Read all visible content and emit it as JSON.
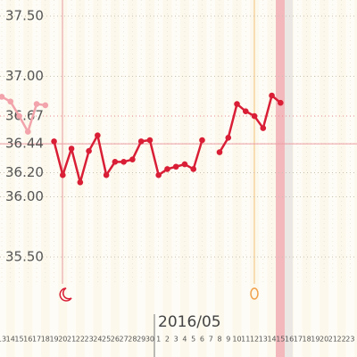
{
  "chart_data": {
    "type": "line",
    "month_label": "2016/05",
    "categories": [
      "13",
      "14",
      "15",
      "16",
      "17",
      "18",
      "19",
      "20",
      "21",
      "22",
      "23",
      "24",
      "25",
      "26",
      "27",
      "28",
      "29",
      "30",
      "1",
      "2",
      "3",
      "4",
      "5",
      "6",
      "7",
      "8",
      "9",
      "10",
      "11",
      "12",
      "13",
      "14",
      "15",
      "16",
      "17",
      "18",
      "19",
      "20",
      "21",
      "22",
      "23"
    ],
    "series": [
      {
        "color": "#f2a3ab",
        "values": [
          36.83,
          36.79,
          36.67,
          36.54,
          36.77,
          36.76,
          null,
          null,
          null,
          null,
          null,
          null,
          null,
          null,
          null,
          null,
          null,
          null,
          null,
          null,
          null,
          null,
          null,
          null,
          null,
          null,
          null,
          null,
          null,
          null,
          null,
          null,
          null,
          null,
          null,
          null,
          null,
          null,
          null,
          null,
          null
        ]
      },
      {
        "color": "#d91e36",
        "values": [
          null,
          null,
          null,
          null,
          null,
          null,
          36.46,
          36.18,
          36.4,
          36.12,
          36.38,
          36.51,
          36.18,
          36.29,
          36.29,
          36.31,
          36.46,
          36.47,
          36.18,
          36.23,
          36.25,
          36.27,
          36.23,
          36.47,
          null,
          36.37,
          36.49,
          36.77,
          36.71,
          36.67,
          36.57,
          36.84,
          36.78,
          null,
          null,
          null,
          null,
          null,
          null,
          null,
          null
        ]
      }
    ],
    "ylim": [
      35.37,
      37.61
    ],
    "yticks": [
      {
        "value": 37.5,
        "label": "37.50"
      },
      {
        "value": 37.0,
        "label": "37.00"
      },
      {
        "value": 36.67,
        "label": "36.67"
      },
      {
        "value": 36.44,
        "label": "36.44"
      },
      {
        "value": 36.2,
        "label": "36.20"
      },
      {
        "value": 36.0,
        "label": "36.00"
      },
      {
        "value": 35.5,
        "label": "35.50"
      }
    ],
    "grid": true
  }
}
